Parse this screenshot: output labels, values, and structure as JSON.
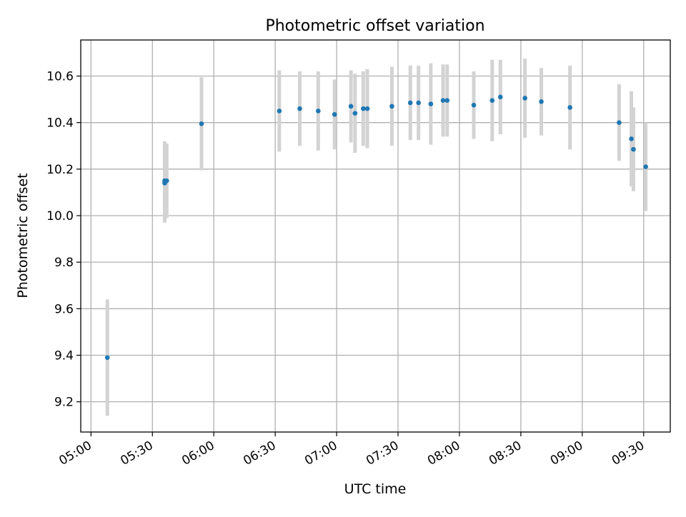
{
  "chart_data": {
    "type": "scatter",
    "title": "Photometric offset variation",
    "xlabel": "UTC time",
    "ylabel": "Photometric offset",
    "x_ticks": [
      "05:00",
      "05:30",
      "06:00",
      "06:30",
      "07:00",
      "07:30",
      "08:00",
      "08:30",
      "09:00",
      "09:30"
    ],
    "y_ticks": [
      "9.2",
      "9.4",
      "9.6",
      "9.8",
      "10.0",
      "10.2",
      "10.4",
      "10.6"
    ],
    "xlim": [
      "04:55",
      "09:43"
    ],
    "ylim": [
      9.07,
      10.755
    ],
    "grid": true,
    "colors": {
      "point": "#1f77b4",
      "errorbar": "#d3d3d3",
      "grid": "#b0b0b0"
    },
    "series": [
      {
        "points": [
          {
            "x": "05:08",
            "y": 9.39,
            "yerr": 0.25
          },
          {
            "x": "05:36",
            "y": 10.14,
            "yerr": 0.17
          },
          {
            "x": "05:36",
            "y": 10.15,
            "yerr": 0.17
          },
          {
            "x": "05:37",
            "y": 10.15,
            "yerr": 0.16
          },
          {
            "x": "05:54",
            "y": 10.395,
            "yerr": 0.2
          },
          {
            "x": "06:32",
            "y": 10.45,
            "yerr": 0.175
          },
          {
            "x": "06:42",
            "y": 10.46,
            "yerr": 0.16
          },
          {
            "x": "06:51",
            "y": 10.45,
            "yerr": 0.17
          },
          {
            "x": "06:59",
            "y": 10.435,
            "yerr": 0.15
          },
          {
            "x": "07:07",
            "y": 10.47,
            "yerr": 0.155
          },
          {
            "x": "07:09",
            "y": 10.44,
            "yerr": 0.17
          },
          {
            "x": "07:13",
            "y": 10.46,
            "yerr": 0.16
          },
          {
            "x": "07:15",
            "y": 10.46,
            "yerr": 0.17
          },
          {
            "x": "07:27",
            "y": 10.47,
            "yerr": 0.17
          },
          {
            "x": "07:36",
            "y": 10.485,
            "yerr": 0.16
          },
          {
            "x": "07:40",
            "y": 10.485,
            "yerr": 0.16
          },
          {
            "x": "07:46",
            "y": 10.48,
            "yerr": 0.175
          },
          {
            "x": "07:52",
            "y": 10.495,
            "yerr": 0.155
          },
          {
            "x": "07:54",
            "y": 10.495,
            "yerr": 0.155
          },
          {
            "x": "08:07",
            "y": 10.475,
            "yerr": 0.145
          },
          {
            "x": "08:16",
            "y": 10.495,
            "yerr": 0.175
          },
          {
            "x": "08:20",
            "y": 10.51,
            "yerr": 0.16
          },
          {
            "x": "08:32",
            "y": 10.505,
            "yerr": 0.17
          },
          {
            "x": "08:40",
            "y": 10.49,
            "yerr": 0.145
          },
          {
            "x": "08:54",
            "y": 10.465,
            "yerr": 0.18
          },
          {
            "x": "09:18",
            "y": 10.4,
            "yerr": 0.165
          },
          {
            "x": "09:24",
            "y": 10.33,
            "yerr": 0.205
          },
          {
            "x": "09:25",
            "y": 10.285,
            "yerr": 0.18
          },
          {
            "x": "09:31",
            "y": 10.21,
            "yerr": 0.19
          }
        ]
      }
    ]
  }
}
